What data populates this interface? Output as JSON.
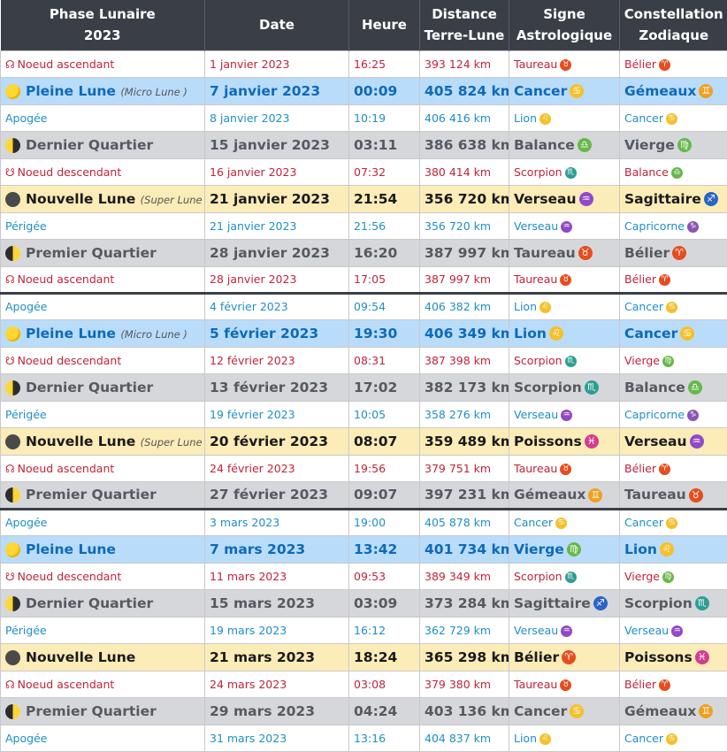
{
  "header": {
    "col1_line1": "Phase Lunaire",
    "col1_line2": "2023",
    "col2": "Date",
    "col3": "Heure",
    "col4_line1": "Distance",
    "col4_line2": "Terre-Lune",
    "col5_line1": "Signe",
    "col5_line2": "Astrologique",
    "col6_line1": "Constellation",
    "col6_line2": "Zodiaque"
  },
  "colors": {
    "header_bg": "#3a3f47",
    "full_moon_bg": "#b9dcfb",
    "quarter_bg": "#d6d7db",
    "new_moon_bg": "#fcecb8",
    "node_text": "#c0243a",
    "apsis_text": "#1e8fc6"
  },
  "rows": [
    {
      "kind": "node",
      "icon": "ascending-node-icon",
      "glyph": "☊",
      "event": "Noeud ascendant",
      "note": "",
      "date": "1 janvier 2023",
      "time": "16:25",
      "distance": "393 124 km",
      "sign": "Taureau",
      "sign_glyph": "♉",
      "sign_color": "#e44e1e",
      "constellation": "Bélier",
      "const_glyph": "♈",
      "const_color": "#e44e1e"
    },
    {
      "kind": "full",
      "icon": "full-moon-icon",
      "event": "Pleine Lune",
      "note": "(Micro Lune )",
      "date": "7 janvier 2023",
      "time": "00:09",
      "distance": "405 824 km",
      "sign": "Cancer",
      "sign_glyph": "♋",
      "sign_color": "#f5c02a",
      "constellation": "Gémeaux",
      "const_glyph": "♊",
      "const_color": "#f0a020"
    },
    {
      "kind": "apo",
      "event": "Apogée",
      "note": "",
      "date": "8 janvier 2023",
      "time": "10:19",
      "distance": "406 416 km",
      "sign": "Lion",
      "sign_glyph": "♌",
      "sign_color": "#f5c02a",
      "constellation": "Cancer",
      "const_glyph": "♋",
      "const_color": "#f5c02a"
    },
    {
      "kind": "last",
      "icon": "last-quarter-icon",
      "event": "Dernier Quartier",
      "note": "",
      "date": "15 janvier 2023",
      "time": "03:11",
      "distance": "386 638 km",
      "sign": "Balance",
      "sign_glyph": "♎",
      "sign_color": "#67b84a",
      "constellation": "Vierge",
      "const_glyph": "♍",
      "const_color": "#67b84a"
    },
    {
      "kind": "node",
      "icon": "descending-node-icon",
      "glyph": "☋",
      "event": "Noeud descendant",
      "note": "",
      "date": "16 janvier 2023",
      "time": "07:32",
      "distance": "380 414 km",
      "sign": "Scorpion",
      "sign_glyph": "♏",
      "sign_color": "#2e9e92",
      "constellation": "Balance",
      "const_glyph": "♎",
      "const_color": "#67b84a"
    },
    {
      "kind": "new",
      "icon": "new-moon-icon",
      "event": "Nouvelle Lune",
      "note": "(Super Lune )",
      "date": "21 janvier 2023",
      "time": "21:54",
      "distance": "356 720 km",
      "sign": "Verseau",
      "sign_glyph": "♒",
      "sign_color": "#9248c8",
      "constellation": "Sagittaire",
      "const_glyph": "♐",
      "const_color": "#2a64c8"
    },
    {
      "kind": "peri",
      "event": "Périgée",
      "note": "",
      "date": "21 janvier 2023",
      "time": "21:56",
      "distance": "356 720 km",
      "sign": "Verseau",
      "sign_glyph": "♒",
      "sign_color": "#9248c8",
      "constellation": "Capricorne",
      "const_glyph": "♑",
      "const_color": "#8a55b5"
    },
    {
      "kind": "first",
      "icon": "first-quarter-icon",
      "event": "Premier Quartier",
      "note": "",
      "date": "28 janvier 2023",
      "time": "16:20",
      "distance": "387 997 km",
      "sign": "Taureau",
      "sign_glyph": "♉",
      "sign_color": "#e44e1e",
      "constellation": "Bélier",
      "const_glyph": "♈",
      "const_color": "#e44e1e"
    },
    {
      "kind": "node",
      "icon": "ascending-node-icon",
      "glyph": "☊",
      "event": "Noeud ascendant",
      "note": "",
      "date": "28 janvier 2023",
      "time": "17:05",
      "distance": "387 997 km",
      "sign": "Taureau",
      "sign_glyph": "♉",
      "sign_color": "#e44e1e",
      "constellation": "Bélier",
      "const_glyph": "♈",
      "const_color": "#e44e1e"
    },
    {
      "kind": "apo",
      "sep": true,
      "event": "Apogée",
      "note": "",
      "date": "4 février 2023",
      "time": "09:54",
      "distance": "406 382 km",
      "sign": "Lion",
      "sign_glyph": "♌",
      "sign_color": "#f5c02a",
      "constellation": "Cancer",
      "const_glyph": "♋",
      "const_color": "#f5c02a"
    },
    {
      "kind": "full",
      "icon": "full-moon-icon",
      "event": "Pleine Lune",
      "note": "(Micro Lune )",
      "date": "5 février 2023",
      "time": "19:30",
      "distance": "406 349 km",
      "sign": "Lion",
      "sign_glyph": "♌",
      "sign_color": "#f5c02a",
      "constellation": "Cancer",
      "const_glyph": "♋",
      "const_color": "#f5c02a"
    },
    {
      "kind": "node",
      "icon": "descending-node-icon",
      "glyph": "☋",
      "event": "Noeud descendant",
      "note": "",
      "date": "12 février 2023",
      "time": "08:31",
      "distance": "387 398 km",
      "sign": "Scorpion",
      "sign_glyph": "♏",
      "sign_color": "#2e9e92",
      "constellation": "Vierge",
      "const_glyph": "♍",
      "const_color": "#67b84a"
    },
    {
      "kind": "last",
      "icon": "last-quarter-icon",
      "event": "Dernier Quartier",
      "note": "",
      "date": "13 février 2023",
      "time": "17:02",
      "distance": "382 173 km",
      "sign": "Scorpion",
      "sign_glyph": "♏",
      "sign_color": "#2e9e92",
      "constellation": "Balance",
      "const_glyph": "♎",
      "const_color": "#67b84a"
    },
    {
      "kind": "peri",
      "event": "Périgée",
      "note": "",
      "date": "19 février 2023",
      "time": "10:05",
      "distance": "358 276 km",
      "sign": "Verseau",
      "sign_glyph": "♒",
      "sign_color": "#9248c8",
      "constellation": "Capricorne",
      "const_glyph": "♑",
      "const_color": "#8a55b5"
    },
    {
      "kind": "new",
      "icon": "new-moon-icon",
      "event": "Nouvelle Lune",
      "note": "(Super Lune )",
      "date": "20 février 2023",
      "time": "08:07",
      "distance": "359 489 km",
      "sign": "Poissons",
      "sign_glyph": "♓",
      "sign_color": "#d33c90",
      "constellation": "Verseau",
      "const_glyph": "♒",
      "const_color": "#9248c8"
    },
    {
      "kind": "node",
      "icon": "ascending-node-icon",
      "glyph": "☊",
      "event": "Noeud ascendant",
      "note": "",
      "date": "24 février 2023",
      "time": "19:56",
      "distance": "379 751 km",
      "sign": "Taureau",
      "sign_glyph": "♉",
      "sign_color": "#e44e1e",
      "constellation": "Bélier",
      "const_glyph": "♈",
      "const_color": "#e44e1e"
    },
    {
      "kind": "first",
      "icon": "first-quarter-icon",
      "event": "Premier Quartier",
      "note": "",
      "date": "27 février 2023",
      "time": "09:07",
      "distance": "397 231 km",
      "sign": "Gémeaux",
      "sign_glyph": "♊",
      "sign_color": "#f0a020",
      "constellation": "Taureau",
      "const_glyph": "♉",
      "const_color": "#e44e1e"
    },
    {
      "kind": "apo",
      "sep": true,
      "event": "Apogée",
      "note": "",
      "date": "3 mars 2023",
      "time": "19:00",
      "distance": "405 878 km",
      "sign": "Cancer",
      "sign_glyph": "♋",
      "sign_color": "#f5c02a",
      "constellation": "Cancer",
      "const_glyph": "♋",
      "const_color": "#f5c02a"
    },
    {
      "kind": "full",
      "icon": "full-moon-icon",
      "event": "Pleine Lune",
      "note": "",
      "date": "7 mars 2023",
      "time": "13:42",
      "distance": "401 734 km",
      "sign": "Vierge",
      "sign_glyph": "♍",
      "sign_color": "#67b84a",
      "constellation": "Lion",
      "const_glyph": "♌",
      "const_color": "#f5c02a"
    },
    {
      "kind": "node",
      "icon": "descending-node-icon",
      "glyph": "☋",
      "event": "Noeud descendant",
      "note": "",
      "date": "11 mars 2023",
      "time": "09:53",
      "distance": "389 349 km",
      "sign": "Scorpion",
      "sign_glyph": "♏",
      "sign_color": "#2e9e92",
      "constellation": "Vierge",
      "const_glyph": "♍",
      "const_color": "#67b84a"
    },
    {
      "kind": "last",
      "icon": "last-quarter-icon",
      "event": "Dernier Quartier",
      "note": "",
      "date": "15 mars 2023",
      "time": "03:09",
      "distance": "373 284 km",
      "sign": "Sagittaire",
      "sign_glyph": "♐",
      "sign_color": "#2a64c8",
      "constellation": "Scorpion",
      "const_glyph": "♏",
      "const_color": "#2e9e92"
    },
    {
      "kind": "peri",
      "event": "Périgée",
      "note": "",
      "date": "19 mars 2023",
      "time": "16:12",
      "distance": "362 729 km",
      "sign": "Verseau",
      "sign_glyph": "♒",
      "sign_color": "#9248c8",
      "constellation": "Verseau",
      "const_glyph": "♒",
      "const_color": "#9248c8"
    },
    {
      "kind": "new",
      "icon": "new-moon-icon",
      "event": "Nouvelle Lune",
      "note": "",
      "date": "21 mars 2023",
      "time": "18:24",
      "distance": "365 298 km",
      "sign": "Bélier",
      "sign_glyph": "♈",
      "sign_color": "#e44e1e",
      "constellation": "Poissons",
      "const_glyph": "♓",
      "const_color": "#d33c90"
    },
    {
      "kind": "node",
      "icon": "ascending-node-icon",
      "glyph": "☊",
      "event": "Noeud ascendant",
      "note": "",
      "date": "24 mars 2023",
      "time": "03:08",
      "distance": "379 380 km",
      "sign": "Taureau",
      "sign_glyph": "♉",
      "sign_color": "#e44e1e",
      "constellation": "Bélier",
      "const_glyph": "♈",
      "const_color": "#e44e1e"
    },
    {
      "kind": "first",
      "icon": "first-quarter-icon",
      "event": "Premier Quartier",
      "note": "",
      "date": "29 mars 2023",
      "time": "04:24",
      "distance": "403 136 km",
      "sign": "Cancer",
      "sign_glyph": "♋",
      "sign_color": "#f5c02a",
      "constellation": "Gémeaux",
      "const_glyph": "♊",
      "const_color": "#f0a020"
    },
    {
      "kind": "apo",
      "event": "Apogée",
      "note": "",
      "date": "31 mars 2023",
      "time": "13:16",
      "distance": "404 837 km",
      "sign": "Lion",
      "sign_glyph": "♌",
      "sign_color": "#f5c02a",
      "constellation": "Cancer",
      "const_glyph": "♋",
      "const_color": "#f5c02a"
    }
  ]
}
